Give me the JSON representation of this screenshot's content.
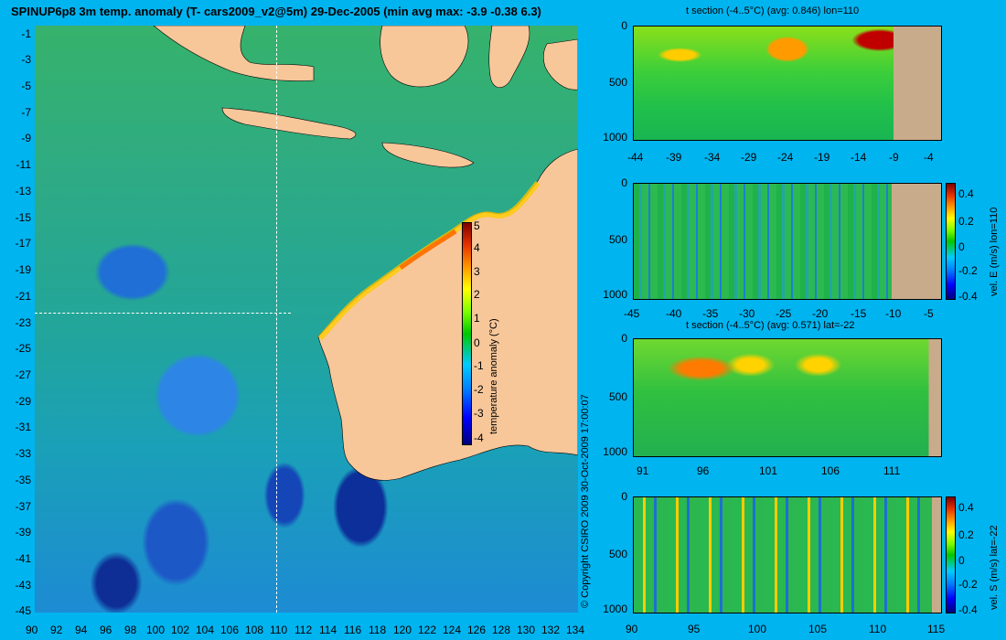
{
  "title": "SPINUP6p8 3m temp. anomaly (T- cars2009_v2@5m) 29-Dec-2005 (min avg max: -3.9 -0.38 6.3)",
  "copyright": "© Copyright CSIRO 2009   30-Oct-2009 17:00:07",
  "map": {
    "lat_ticks": [
      "-1",
      "-3",
      "-5",
      "-7",
      "-9",
      "-11",
      "-13",
      "-15",
      "-17",
      "-19",
      "-21",
      "-23",
      "-25",
      "-27",
      "-29",
      "-31",
      "-33",
      "-35",
      "-37",
      "-39",
      "-41",
      "-43",
      "-45"
    ],
    "lon_ticks": [
      "90",
      "92",
      "94",
      "96",
      "98",
      "100",
      "102",
      "104",
      "106",
      "108",
      "110",
      "112",
      "114",
      "116",
      "118",
      "120",
      "122",
      "124",
      "126",
      "128",
      "130",
      "132",
      "134"
    ],
    "section_lon": "110",
    "section_lat": "-22",
    "colorbar": {
      "label": "temperature anomaly (°C)",
      "ticks": [
        "5",
        "4",
        "3",
        "2",
        "1",
        "0",
        "-1",
        "-2",
        "-3",
        "-4"
      ]
    },
    "colors": {
      "land": "#f7c79a",
      "background": "#00b4f0"
    }
  },
  "panels": [
    {
      "title": "t section (-4..5°C) (avg: 0.846) lon=110",
      "y_ticks": [
        "0",
        "500",
        "1000"
      ],
      "x_ticks": [
        "-44",
        "-39",
        "-34",
        "-29",
        "-24",
        "-19",
        "-14",
        "-9",
        "-4"
      ]
    },
    {
      "title": "",
      "y_ticks": [
        "0",
        "500",
        "1000"
      ],
      "x_ticks": [
        "-45",
        "-40",
        "-35",
        "-30",
        "-25",
        "-20",
        "-15",
        "-10",
        "-5"
      ],
      "colorbar_label": "vel. E (m/s) lon=110",
      "colorbar_ticks": [
        "0.4",
        "0.2",
        "0",
        "-0.2",
        "-0.4"
      ]
    },
    {
      "title": "t section (-4..5°C) (avg: 0.571) lat=-22",
      "y_ticks": [
        "0",
        "500",
        "1000"
      ],
      "x_ticks": [
        "91",
        "96",
        "101",
        "106",
        "111"
      ]
    },
    {
      "title": "",
      "y_ticks": [
        "0",
        "500",
        "1000"
      ],
      "x_ticks": [
        "90",
        "95",
        "100",
        "105",
        "110",
        "115"
      ],
      "colorbar_label": "vel. S (m/s) lat=-22",
      "colorbar_ticks": [
        "0.4",
        "0.2",
        "0",
        "-0.2",
        "-0.4"
      ]
    }
  ]
}
